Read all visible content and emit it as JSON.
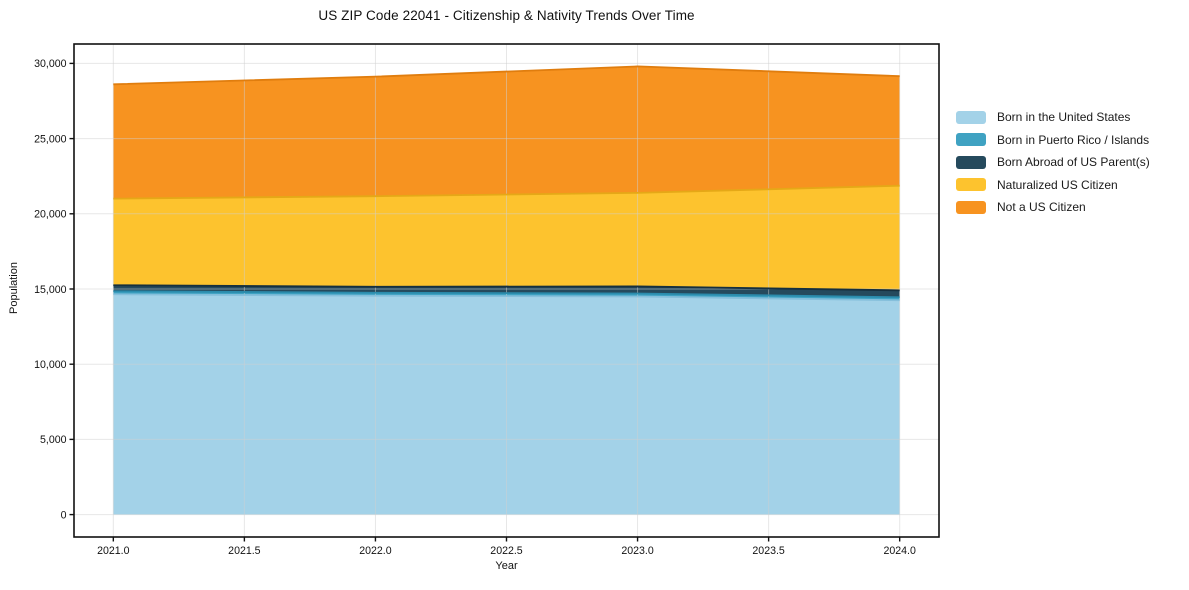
{
  "chart_data": {
    "type": "area",
    "stacked": true,
    "title": "US ZIP Code 22041 - Citizenship & Nativity Trends Over Time",
    "xlabel": "Year",
    "ylabel": "Population",
    "x": [
      2021,
      2022,
      2023,
      2024
    ],
    "series": [
      {
        "name": "Born in the United States",
        "color": "#A3D2E8",
        "edge_color": "#85BFDB",
        "values": [
          14650,
          14550,
          14500,
          14250
        ]
      },
      {
        "name": "Born in Puerto Rico / Islands",
        "color": "#3FA2C2",
        "edge_color": "#2B8CAD",
        "values": [
          200,
          200,
          200,
          200
        ]
      },
      {
        "name": "Born Abroad of US Parent(s)",
        "color": "#254A5D",
        "edge_color": "#16303F",
        "values": [
          400,
          400,
          470,
          460
        ]
      },
      {
        "name": "Naturalized US Citizen",
        "color": "#FDC32E",
        "edge_color": "#E5A817",
        "values": [
          5760,
          6020,
          6220,
          6960
        ]
      },
      {
        "name": "Not a US Citizen",
        "color": "#F79320",
        "edge_color": "#E07D0E",
        "values": [
          7600,
          7950,
          8410,
          7280
        ]
      }
    ],
    "x_ticks": {
      "values": [
        2021,
        2021.5,
        2022,
        2022.5,
        2023,
        2023.5,
        2024
      ],
      "labels": [
        "2021.0",
        "2021.5",
        "2022.0",
        "2022.5",
        "2023.0",
        "2023.5",
        "2024.0"
      ]
    },
    "y_ticks": {
      "values": [
        0,
        5000,
        10000,
        15000,
        20000,
        25000,
        30000
      ],
      "labels": [
        "0",
        "5,000",
        "10,000",
        "15,000",
        "20,000",
        "25,000",
        "30,000"
      ]
    },
    "xlim": [
      2020.85,
      2024.15
    ],
    "ylim": [
      -1490,
      31290
    ],
    "grid": true,
    "legend_position": "right",
    "colors": {
      "grid": "#cfcfcf",
      "axis": "#111111",
      "background": "#ffffff"
    }
  }
}
